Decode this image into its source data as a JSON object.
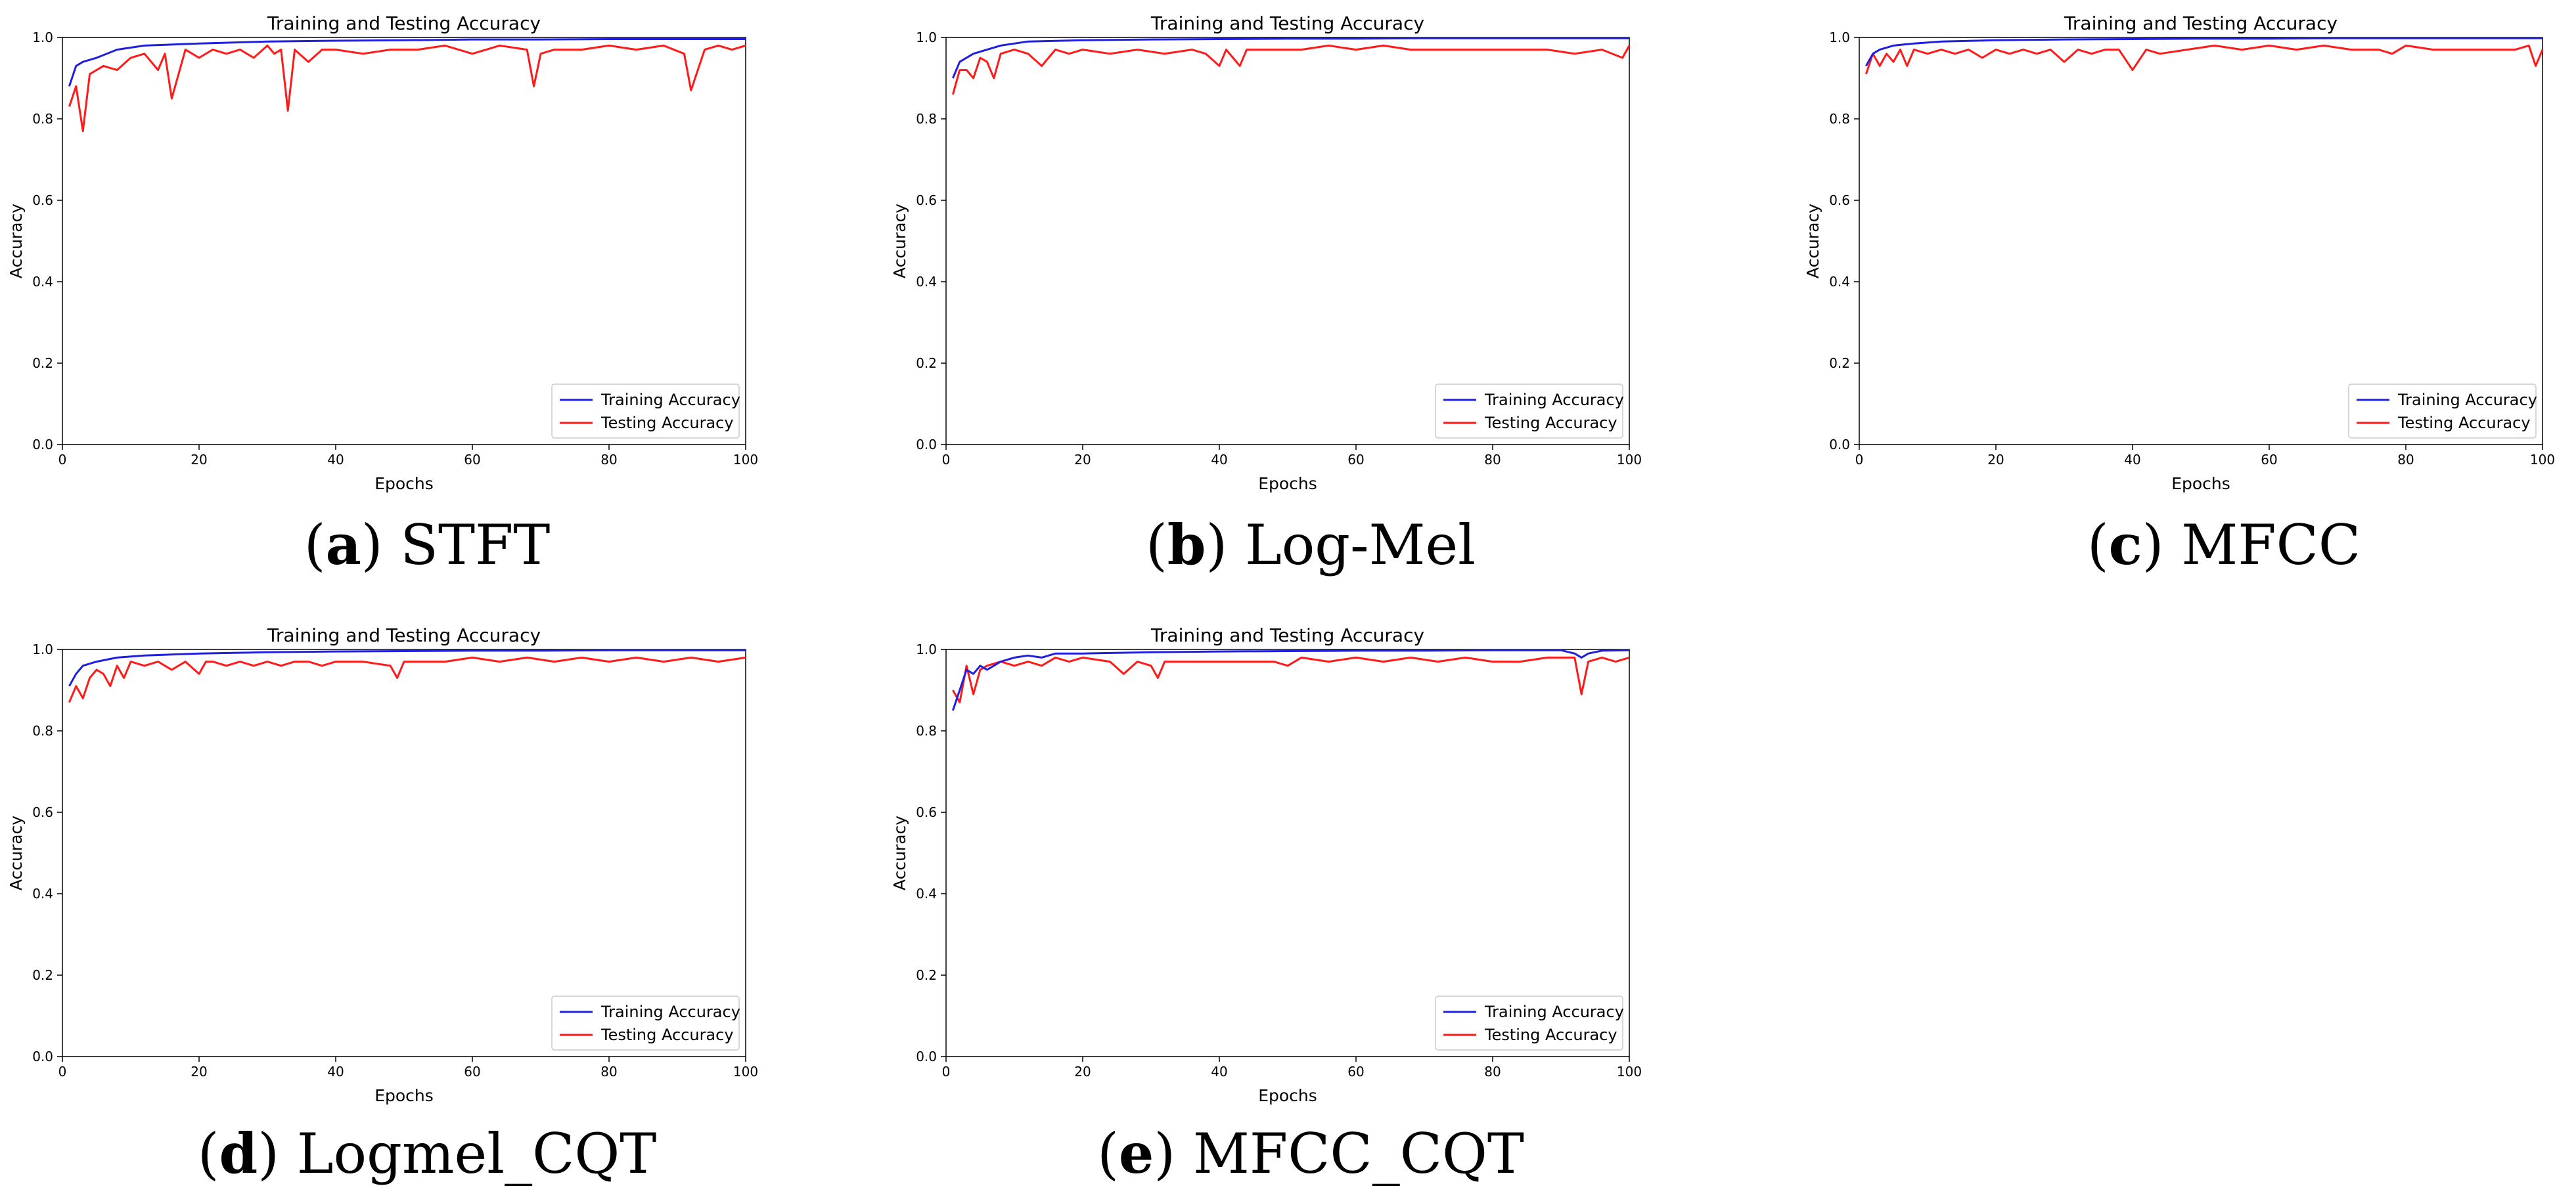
{
  "figure": {
    "panels": [
      {
        "letter": "a",
        "name": "STFT"
      },
      {
        "letter": "b",
        "name": "Log-Mel"
      },
      {
        "letter": "c",
        "name": "MFCC"
      },
      {
        "letter": "d",
        "name": "Logmel_CQT"
      },
      {
        "letter": "e",
        "name": "MFCC_CQT"
      }
    ]
  },
  "colors": {
    "training": "#1f1fe0",
    "testing": "#ff1a1a"
  },
  "chart_data": [
    {
      "type": "line",
      "title": "Training and Testing Accuracy",
      "xlabel": "Epochs",
      "ylabel": "Accuracy",
      "xlim": [
        0,
        100
      ],
      "ylim": [
        0.0,
        1.0
      ],
      "xticks": [
        "0",
        "20",
        "40",
        "60",
        "80",
        "100"
      ],
      "yticks": [
        "0.0",
        "0.2",
        "0.4",
        "0.6",
        "0.8",
        "1.0"
      ],
      "grid": false,
      "legend_position": "bottom-right",
      "series": [
        {
          "name": "Training Accuracy",
          "color": "#1f1fe0",
          "x": [
            1,
            2,
            3,
            5,
            8,
            12,
            20,
            30,
            40,
            50,
            60,
            70,
            80,
            90,
            100
          ],
          "values": [
            0.88,
            0.93,
            0.94,
            0.95,
            0.97,
            0.98,
            0.985,
            0.99,
            0.992,
            0.993,
            0.995,
            0.995,
            0.996,
            0.996,
            0.996
          ]
        },
        {
          "name": "Testing Accuracy",
          "color": "#ff1a1a",
          "x": [
            1,
            2,
            3,
            4,
            6,
            8,
            10,
            12,
            14,
            15,
            16,
            18,
            20,
            22,
            24,
            26,
            28,
            30,
            31,
            32,
            33,
            34,
            36,
            38,
            40,
            44,
            48,
            52,
            56,
            60,
            64,
            68,
            69,
            70,
            72,
            76,
            80,
            84,
            88,
            91,
            92,
            94,
            96,
            98,
            100
          ],
          "values": [
            0.83,
            0.88,
            0.77,
            0.91,
            0.93,
            0.92,
            0.95,
            0.96,
            0.92,
            0.96,
            0.85,
            0.97,
            0.95,
            0.97,
            0.96,
            0.97,
            0.95,
            0.98,
            0.96,
            0.97,
            0.82,
            0.97,
            0.94,
            0.97,
            0.97,
            0.96,
            0.97,
            0.97,
            0.98,
            0.96,
            0.98,
            0.97,
            0.88,
            0.96,
            0.97,
            0.97,
            0.98,
            0.97,
            0.98,
            0.96,
            0.87,
            0.97,
            0.98,
            0.97,
            0.98
          ]
        }
      ]
    },
    {
      "type": "line",
      "title": "Training and Testing Accuracy",
      "xlabel": "Epochs",
      "ylabel": "Accuracy",
      "xlim": [
        0,
        100
      ],
      "ylim": [
        0.0,
        1.0
      ],
      "xticks": [
        "0",
        "20",
        "40",
        "60",
        "80",
        "100"
      ],
      "yticks": [
        "0.0",
        "0.2",
        "0.4",
        "0.6",
        "0.8",
        "1.0"
      ],
      "grid": false,
      "legend_position": "bottom-right",
      "series": [
        {
          "name": "Training Accuracy",
          "color": "#1f1fe0",
          "x": [
            1,
            2,
            4,
            6,
            8,
            12,
            20,
            30,
            40,
            50,
            60,
            70,
            80,
            90,
            100
          ],
          "values": [
            0.9,
            0.94,
            0.96,
            0.97,
            0.98,
            0.99,
            0.993,
            0.995,
            0.996,
            0.997,
            0.997,
            0.998,
            0.998,
            0.998,
            0.998
          ]
        },
        {
          "name": "Testing Accuracy",
          "color": "#ff1a1a",
          "x": [
            1,
            2,
            3,
            4,
            5,
            6,
            7,
            8,
            10,
            12,
            14,
            16,
            18,
            20,
            24,
            28,
            32,
            36,
            38,
            40,
            41,
            42,
            43,
            44,
            48,
            52,
            56,
            60,
            64,
            68,
            72,
            76,
            80,
            84,
            88,
            92,
            96,
            99,
            100
          ],
          "values": [
            0.86,
            0.92,
            0.92,
            0.9,
            0.95,
            0.94,
            0.9,
            0.96,
            0.97,
            0.96,
            0.93,
            0.97,
            0.96,
            0.97,
            0.96,
            0.97,
            0.96,
            0.97,
            0.96,
            0.93,
            0.97,
            0.95,
            0.93,
            0.97,
            0.97,
            0.97,
            0.98,
            0.97,
            0.98,
            0.97,
            0.97,
            0.97,
            0.97,
            0.97,
            0.97,
            0.96,
            0.97,
            0.95,
            0.98
          ]
        }
      ]
    },
    {
      "type": "line",
      "title": "Training and Testing Accuracy",
      "xlabel": "Epochs",
      "ylabel": "Accuracy",
      "xlim": [
        0,
        100
      ],
      "ylim": [
        0.0,
        1.0
      ],
      "xticks": [
        "0",
        "20",
        "40",
        "60",
        "80",
        "100"
      ],
      "yticks": [
        "0.0",
        "0.2",
        "0.4",
        "0.6",
        "0.8",
        "1.0"
      ],
      "grid": false,
      "legend_position": "bottom-right",
      "series": [
        {
          "name": "Training Accuracy",
          "color": "#1f1fe0",
          "x": [
            1,
            2,
            3,
            5,
            8,
            12,
            20,
            30,
            40,
            50,
            60,
            70,
            80,
            90,
            100
          ],
          "values": [
            0.93,
            0.96,
            0.97,
            0.98,
            0.985,
            0.99,
            0.993,
            0.995,
            0.996,
            0.997,
            0.997,
            0.998,
            0.998,
            0.998,
            0.998
          ]
        },
        {
          "name": "Testing Accuracy",
          "color": "#ff1a1a",
          "x": [
            1,
            2,
            3,
            4,
            5,
            6,
            7,
            8,
            10,
            12,
            14,
            16,
            18,
            20,
            22,
            24,
            26,
            28,
            30,
            32,
            34,
            36,
            38,
            40,
            42,
            44,
            48,
            52,
            56,
            60,
            64,
            68,
            72,
            76,
            78,
            80,
            84,
            88,
            92,
            96,
            98,
            99,
            100
          ],
          "values": [
            0.91,
            0.96,
            0.93,
            0.96,
            0.94,
            0.97,
            0.93,
            0.97,
            0.96,
            0.97,
            0.96,
            0.97,
            0.95,
            0.97,
            0.96,
            0.97,
            0.96,
            0.97,
            0.94,
            0.97,
            0.96,
            0.97,
            0.97,
            0.92,
            0.97,
            0.96,
            0.97,
            0.98,
            0.97,
            0.98,
            0.97,
            0.98,
            0.97,
            0.97,
            0.96,
            0.98,
            0.97,
            0.97,
            0.97,
            0.97,
            0.98,
            0.93,
            0.97
          ]
        }
      ]
    },
    {
      "type": "line",
      "title": "Training and Testing Accuracy",
      "xlabel": "Epochs",
      "ylabel": "Accuracy",
      "xlim": [
        0,
        100
      ],
      "ylim": [
        0.0,
        1.0
      ],
      "xticks": [
        "0",
        "20",
        "40",
        "60",
        "80",
        "100"
      ],
      "yticks": [
        "0.0",
        "0.2",
        "0.4",
        "0.6",
        "0.8",
        "1.0"
      ],
      "grid": false,
      "legend_position": "bottom-right",
      "series": [
        {
          "name": "Training Accuracy",
          "color": "#1f1fe0",
          "x": [
            1,
            2,
            3,
            5,
            8,
            12,
            20,
            30,
            40,
            50,
            60,
            70,
            80,
            90,
            100
          ],
          "values": [
            0.91,
            0.94,
            0.96,
            0.97,
            0.98,
            0.985,
            0.99,
            0.993,
            0.995,
            0.996,
            0.997,
            0.997,
            0.998,
            0.998,
            0.998
          ]
        },
        {
          "name": "Testing Accuracy",
          "color": "#ff1a1a",
          "x": [
            1,
            2,
            3,
            4,
            5,
            6,
            7,
            8,
            9,
            10,
            12,
            14,
            16,
            18,
            20,
            21,
            22,
            24,
            26,
            28,
            30,
            32,
            34,
            36,
            38,
            40,
            44,
            48,
            49,
            50,
            52,
            56,
            60,
            64,
            68,
            72,
            76,
            80,
            84,
            88,
            92,
            96,
            100
          ],
          "values": [
            0.87,
            0.91,
            0.88,
            0.93,
            0.95,
            0.94,
            0.91,
            0.96,
            0.93,
            0.97,
            0.96,
            0.97,
            0.95,
            0.97,
            0.94,
            0.97,
            0.97,
            0.96,
            0.97,
            0.96,
            0.97,
            0.96,
            0.97,
            0.97,
            0.96,
            0.97,
            0.97,
            0.96,
            0.93,
            0.97,
            0.97,
            0.97,
            0.98,
            0.97,
            0.98,
            0.97,
            0.98,
            0.97,
            0.98,
            0.97,
            0.98,
            0.97,
            0.98
          ]
        }
      ]
    },
    {
      "type": "line",
      "title": "Training and Testing Accuracy",
      "xlabel": "Epochs",
      "ylabel": "Accuracy",
      "xlim": [
        0,
        100
      ],
      "ylim": [
        0.0,
        1.0
      ],
      "xticks": [
        "0",
        "20",
        "40",
        "60",
        "80",
        "100"
      ],
      "yticks": [
        "0.0",
        "0.2",
        "0.4",
        "0.6",
        "0.8",
        "1.0"
      ],
      "grid": false,
      "legend_position": "bottom-right",
      "series": [
        {
          "name": "Training Accuracy",
          "color": "#1f1fe0",
          "x": [
            1,
            2,
            3,
            4,
            5,
            6,
            8,
            10,
            12,
            14,
            16,
            20,
            30,
            40,
            50,
            60,
            70,
            80,
            90,
            92,
            93,
            94,
            96,
            100
          ],
          "values": [
            0.85,
            0.9,
            0.95,
            0.94,
            0.96,
            0.95,
            0.97,
            0.98,
            0.985,
            0.98,
            0.99,
            0.99,
            0.993,
            0.995,
            0.996,
            0.997,
            0.997,
            0.998,
            0.998,
            0.99,
            0.98,
            0.99,
            0.997,
            0.998
          ]
        },
        {
          "name": "Testing Accuracy",
          "color": "#ff1a1a",
          "x": [
            1,
            2,
            3,
            4,
            5,
            6,
            8,
            10,
            12,
            14,
            16,
            18,
            20,
            24,
            26,
            28,
            30,
            31,
            32,
            36,
            40,
            44,
            48,
            50,
            52,
            56,
            60,
            64,
            68,
            72,
            76,
            80,
            84,
            88,
            92,
            93,
            94,
            96,
            98,
            100
          ],
          "values": [
            0.9,
            0.87,
            0.96,
            0.89,
            0.95,
            0.96,
            0.97,
            0.96,
            0.97,
            0.96,
            0.98,
            0.97,
            0.98,
            0.97,
            0.94,
            0.97,
            0.96,
            0.93,
            0.97,
            0.97,
            0.97,
            0.97,
            0.97,
            0.96,
            0.98,
            0.97,
            0.98,
            0.97,
            0.98,
            0.97,
            0.98,
            0.97,
            0.97,
            0.98,
            0.98,
            0.89,
            0.97,
            0.98,
            0.97,
            0.98
          ]
        }
      ]
    }
  ]
}
